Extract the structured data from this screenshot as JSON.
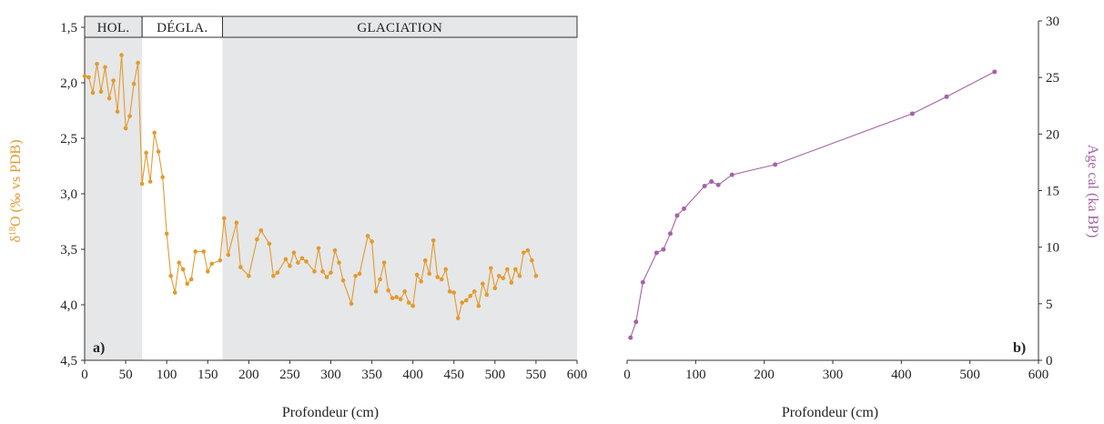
{
  "colors": {
    "orange": "#E39A2E",
    "purple": "#A463A6",
    "shade": "#E6E7E8",
    "axis": "#333333"
  },
  "chart_data": [
    {
      "type": "line",
      "panel_label": "a)",
      "xlabel": "Profondeur (cm)",
      "ylabel": {
        "prefix": "δ",
        "sup": "18",
        "suffix": "O (‰ vs PDB)"
      },
      "xlim": [
        0,
        600
      ],
      "ylim": [
        1.5,
        4.5
      ],
      "y_inverted": true,
      "x_ticks": [
        "0",
        "50",
        "100",
        "150",
        "200",
        "250",
        "300",
        "350",
        "400",
        "450",
        "500",
        "550",
        "600"
      ],
      "y_ticks": [
        "1,5",
        "2,0",
        "2,5",
        "3,0",
        "3,5",
        "4,0",
        "4,5"
      ],
      "periods": [
        {
          "label": "HOL.",
          "start": 0,
          "end": 70,
          "shaded": true
        },
        {
          "label": "DÉGLA.",
          "start": 70,
          "end": 168,
          "shaded": false
        },
        {
          "label": "GLACIATION",
          "start": 168,
          "end": 600,
          "shaded": true
        }
      ],
      "series": [
        {
          "color": "#E39A2E",
          "x": [
            0,
            5,
            10,
            15,
            20,
            25,
            30,
            35,
            40,
            45,
            50,
            55,
            60,
            65,
            70,
            75,
            80,
            85,
            90,
            95,
            100,
            105,
            110,
            115,
            120,
            125,
            130,
            135,
            145,
            150,
            155,
            165,
            170,
            175,
            185,
            190,
            200,
            210,
            215,
            225,
            230,
            235,
            245,
            250,
            255,
            260,
            265,
            270,
            280,
            285,
            290,
            295,
            300,
            305,
            310,
            315,
            325,
            330,
            335,
            345,
            350,
            355,
            360,
            365,
            370,
            375,
            380,
            385,
            390,
            395,
            400,
            405,
            410,
            415,
            420,
            425,
            430,
            435,
            440,
            445,
            450,
            455,
            460,
            465,
            470,
            475,
            480,
            485,
            490,
            495,
            500,
            505,
            510,
            515,
            520,
            525,
            530,
            535,
            540,
            545,
            550
          ],
          "y": [
            1.94,
            1.95,
            2.09,
            1.83,
            2.08,
            1.86,
            2.14,
            1.98,
            2.26,
            1.75,
            2.41,
            2.3,
            2.01,
            1.82,
            2.91,
            2.63,
            2.89,
            2.45,
            2.62,
            2.85,
            3.36,
            3.74,
            3.89,
            3.62,
            3.68,
            3.81,
            3.77,
            3.52,
            3.52,
            3.7,
            3.63,
            3.6,
            3.22,
            3.55,
            3.26,
            3.66,
            3.74,
            3.41,
            3.33,
            3.45,
            3.74,
            3.71,
            3.59,
            3.65,
            3.53,
            3.62,
            3.58,
            3.61,
            3.7,
            3.49,
            3.7,
            3.75,
            3.71,
            3.51,
            3.62,
            3.78,
            3.99,
            3.74,
            3.72,
            3.38,
            3.43,
            3.88,
            3.77,
            3.62,
            3.87,
            3.94,
            3.93,
            3.95,
            3.88,
            3.98,
            4.01,
            3.73,
            3.79,
            3.6,
            3.72,
            3.42,
            3.75,
            3.77,
            3.68,
            3.88,
            3.89,
            4.12,
            3.98,
            3.96,
            3.92,
            3.88,
            4.01,
            3.81,
            3.91,
            3.67,
            3.85,
            3.74,
            3.76,
            3.68,
            3.8,
            3.68,
            3.74,
            3.53,
            3.51,
            3.6,
            3.74
          ]
        }
      ]
    },
    {
      "type": "line",
      "panel_label": "b)",
      "xlabel": "Profondeur (cm)",
      "ylabel": "Age cal (ka BP)",
      "xlim": [
        0,
        600
      ],
      "ylim": [
        0,
        30
      ],
      "y_axis_side": "right",
      "x_ticks": [
        "0",
        "100",
        "200",
        "300",
        "400",
        "500",
        "600"
      ],
      "y_ticks": [
        "0",
        "5",
        "10",
        "15",
        "20",
        "25",
        "30"
      ],
      "series": [
        {
          "color": "#A463A6",
          "x": [
            5,
            13,
            23,
            43,
            53,
            63,
            73,
            83,
            113,
            123,
            133,
            153,
            216,
            416,
            466,
            536
          ],
          "y": [
            2.0,
            3.4,
            6.9,
            9.5,
            9.8,
            11.2,
            12.8,
            13.4,
            15.4,
            15.8,
            15.5,
            16.4,
            17.3,
            21.8,
            23.3,
            25.5
          ]
        }
      ]
    }
  ]
}
